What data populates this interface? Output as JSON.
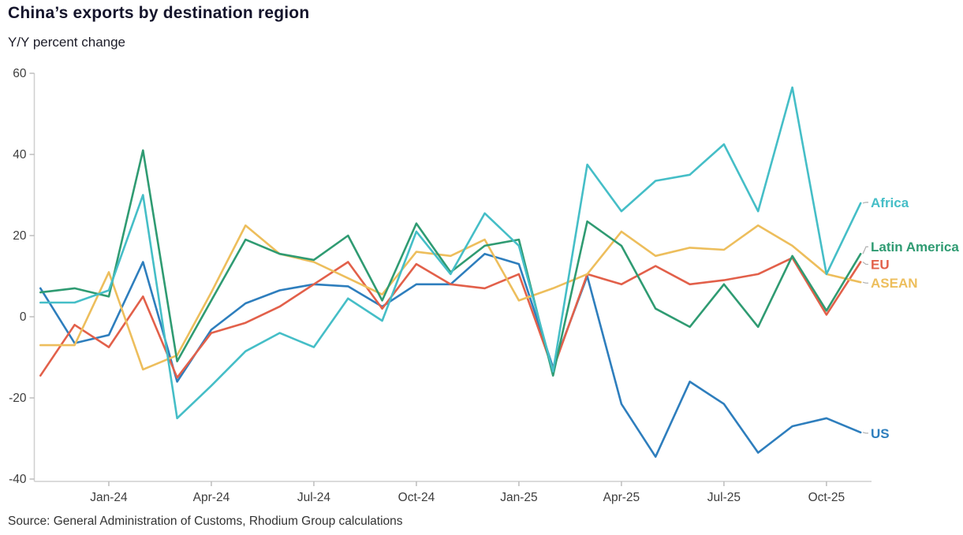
{
  "header": {
    "title": "China’s exports by destination region",
    "subtitle": "Y/Y percent change"
  },
  "footer": {
    "source": "Source: General Administration of Customs, Rhodium Group calculations"
  },
  "chart_data": {
    "type": "line",
    "title": "China’s exports by destination region",
    "subtitle": "Y/Y percent change",
    "xlabel": "",
    "ylabel": "Y/Y percent change",
    "ylim": [
      -40,
      60
    ],
    "yticks": [
      60,
      40,
      20,
      0,
      -20,
      -40
    ],
    "grid": false,
    "legend_position": "right-end-labels",
    "x": [
      "Nov-23",
      "Dec-23",
      "Jan-24",
      "Feb-24",
      "Mar-24",
      "Apr-24",
      "May-24",
      "Jun-24",
      "Jul-24",
      "Aug-24",
      "Sep-24",
      "Oct-24",
      "Nov-24",
      "Dec-24",
      "Jan-25",
      "Feb-25",
      "Mar-25",
      "Apr-25",
      "May-25",
      "Jun-25",
      "Jul-25",
      "Aug-25",
      "Sep-25",
      "Oct-25",
      "Nov-25"
    ],
    "xtick_labels": [
      "Jan-24",
      "Apr-24",
      "Jul-24",
      "Oct-24",
      "Jan-25",
      "Apr-25",
      "Jul-25",
      "Oct-25"
    ],
    "xtick_indices": [
      2,
      5,
      8,
      11,
      14,
      17,
      20,
      23
    ],
    "series": [
      {
        "name": "US",
        "color": "#2e7ebd",
        "values": [
          7,
          -6.5,
          -4.5,
          13.5,
          -16,
          -3.2,
          3.3,
          6.5,
          8,
          7.5,
          2.5,
          8,
          8,
          15.5,
          13,
          -12.5,
          10,
          -21.5,
          -34.5,
          -16,
          -21.5,
          -33.5,
          -27,
          -25,
          -28.5
        ]
      },
      {
        "name": "EU",
        "color": "#e2604a",
        "values": [
          -14.5,
          -2,
          -7.5,
          5,
          -15,
          -4,
          -1.5,
          2.5,
          8,
          13.5,
          2,
          13,
          8,
          7,
          10.5,
          -13,
          10.5,
          8,
          12.5,
          8,
          9,
          10.5,
          14.5,
          0.5,
          13.5
        ]
      },
      {
        "name": "ASEAN",
        "color": "#edbe5c",
        "values": [
          -7,
          -7,
          11,
          -13,
          -9.5,
          6,
          22.5,
          15.5,
          13.5,
          9.5,
          5.5,
          16,
          15,
          19,
          4,
          7,
          10.5,
          21,
          15,
          17,
          16.5,
          22.5,
          17.5,
          10.5,
          8.5
        ]
      },
      {
        "name": "Latin America",
        "color": "#2f9b72",
        "values": [
          6,
          7,
          5,
          41,
          -11,
          4,
          19,
          15.5,
          14,
          20,
          4,
          23,
          11,
          17.5,
          19,
          -14.5,
          23.5,
          17.5,
          2,
          -2.5,
          8,
          -2.5,
          15,
          1.5,
          15.5
        ]
      },
      {
        "name": "Africa",
        "color": "#45bec7",
        "values": [
          3.5,
          3.5,
          6.5,
          30,
          -25,
          -17,
          -8.5,
          -4,
          -7.5,
          4.5,
          -1,
          21,
          10.5,
          25.5,
          17.5,
          -13.5,
          37.5,
          26,
          33.5,
          35,
          42.5,
          26,
          56.5,
          10.5,
          28
        ]
      }
    ]
  }
}
